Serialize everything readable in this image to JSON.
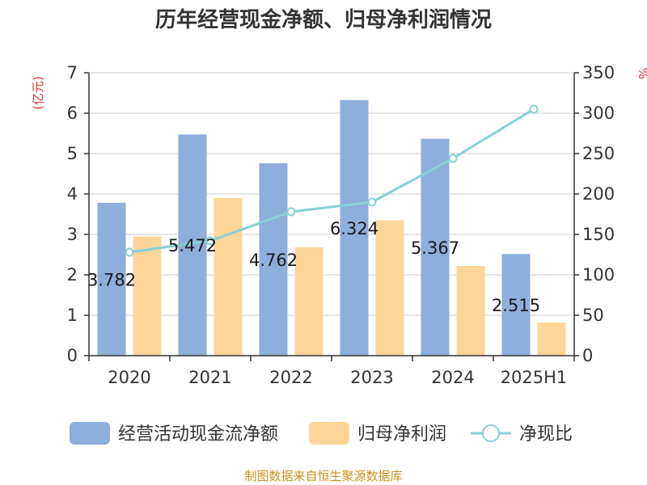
{
  "chart_data": {
    "type": "bar",
    "title": "历年经营现金净额、归母净利润情况",
    "categories": [
      "2020",
      "2021",
      "2022",
      "2023",
      "2024",
      "2025H1"
    ],
    "y_left": {
      "unit": "(亿元)",
      "ylim": [
        0,
        7
      ],
      "ticks": [
        "0",
        "1",
        "2",
        "3",
        "4",
        "5",
        "6",
        "7"
      ]
    },
    "y_right": {
      "unit": "%",
      "ylim": [
        0,
        350
      ],
      "ticks": [
        "0",
        "50",
        "100",
        "150",
        "200",
        "250",
        "300",
        "350"
      ]
    },
    "series": [
      {
        "name": "经营活动现金流净额",
        "type": "bar",
        "axis": "left",
        "color": "#8eaedb",
        "values": [
          3.782,
          5.472,
          4.762,
          6.324,
          5.367,
          2.515
        ],
        "labels": [
          "3.782",
          "5.472",
          "4.762",
          "6.324",
          "5.367",
          "2.515"
        ]
      },
      {
        "name": "归母净利润",
        "type": "bar",
        "axis": "left",
        "color": "#fcd699",
        "values": [
          2.95,
          3.9,
          2.68,
          3.35,
          2.22,
          0.82
        ]
      },
      {
        "name": "净现比",
        "type": "line",
        "axis": "right",
        "color": "#88d0d4",
        "values": [
          128,
          142,
          178,
          190,
          244,
          305
        ]
      }
    ],
    "grid": true,
    "legend": "bottom"
  },
  "source": "制图数据来自恒生聚源数据库"
}
